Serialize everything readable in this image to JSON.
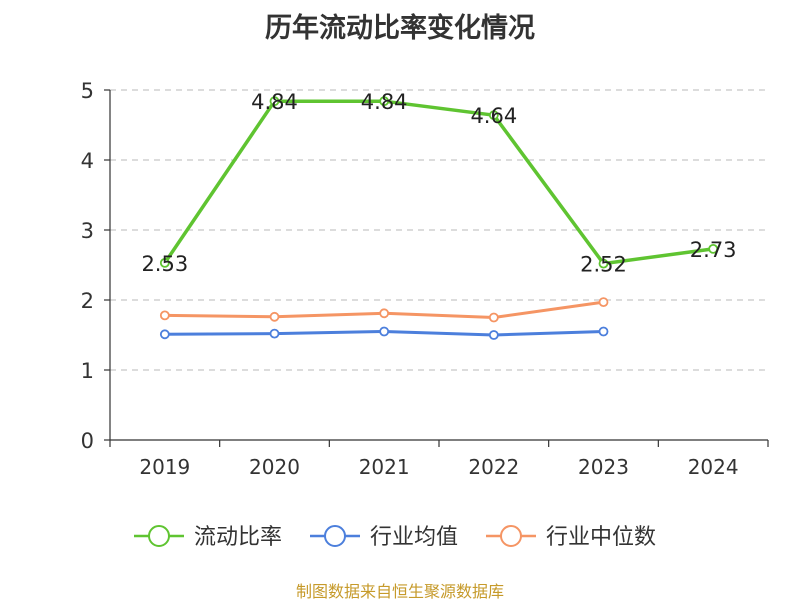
{
  "chart_data": {
    "type": "line",
    "title": "历年流动比率变化情况",
    "categories": [
      "2019",
      "2020",
      "2021",
      "2022",
      "2023",
      "2024"
    ],
    "ylim": [
      0,
      5
    ],
    "yticks": [
      0,
      1,
      2,
      3,
      4,
      5
    ],
    "grid": true,
    "legend_position": "bottom",
    "series": [
      {
        "name": "流动比率",
        "color": "#5fc431",
        "values": [
          2.53,
          4.84,
          4.84,
          4.64,
          2.52,
          2.73
        ],
        "labels": [
          "2.53",
          "4.84",
          "4.84",
          "4.64",
          "2.52",
          "2.73"
        ]
      },
      {
        "name": "行业均值",
        "color": "#4c7fdc",
        "values": [
          1.51,
          1.52,
          1.55,
          1.5,
          1.55,
          null
        ]
      },
      {
        "name": "行业中位数",
        "color": "#f59564",
        "values": [
          1.78,
          1.76,
          1.81,
          1.75,
          1.97,
          null
        ]
      }
    ],
    "source": "制图数据来自恒生聚源数据库"
  }
}
